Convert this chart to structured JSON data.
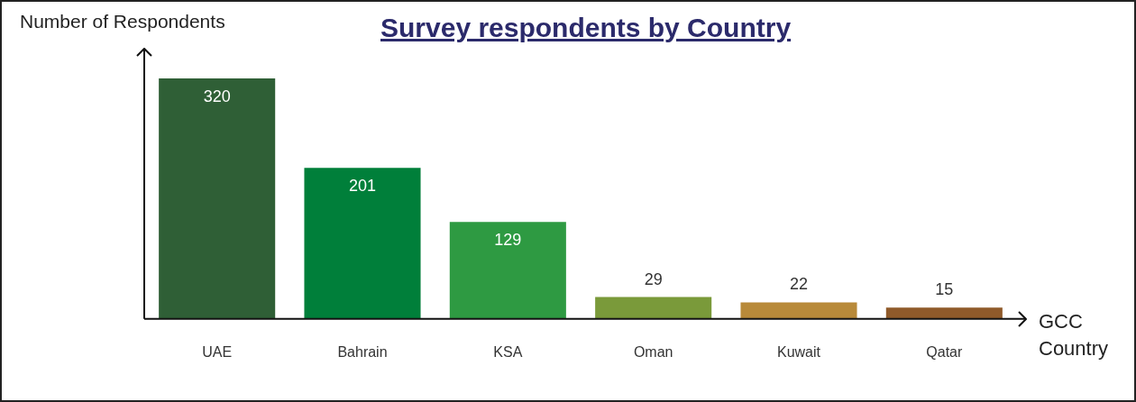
{
  "chart_data": {
    "type": "bar",
    "title": "Survey respondents by Country",
    "ylabel": "Number of Respondents",
    "xlabel": "GCC Country",
    "categories": [
      "UAE",
      "Bahrain",
      "KSA",
      "Oman",
      "Kuwait",
      "Qatar"
    ],
    "values": [
      320,
      201,
      129,
      29,
      22,
      15
    ],
    "colors": [
      "#2f5f36",
      "#007f3a",
      "#2e9a42",
      "#7a9a3a",
      "#b88a3a",
      "#8f5a2a"
    ],
    "data_labels": true,
    "grid": false,
    "legend": false,
    "tick_labels": "x"
  }
}
